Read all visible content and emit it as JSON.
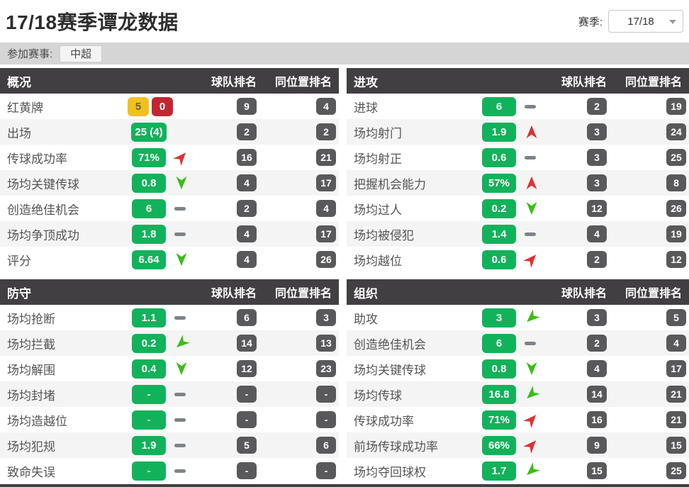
{
  "header": {
    "title": "17/18赛季谭龙数据",
    "season_label": "赛季:",
    "season_value": "17/18",
    "competition_label": "参加赛事:",
    "competition_value": "中超"
  },
  "columns": {
    "team_rank": "球队排名",
    "position_rank": "同位置排名"
  },
  "colors": {
    "badge_green": "#12b25b",
    "card_yellow": "#f2c01e",
    "card_red": "#c22731",
    "rank_badge_gray": "#59595b",
    "panel_header_dark": "#413f41",
    "trend_up_red": "#d93434",
    "trend_down_green": "#3bbd17",
    "trend_flat_gray": "#7c8388"
  },
  "panels": [
    {
      "title": "概况",
      "rows": [
        {
          "label": "红黄牌",
          "cards": {
            "yellow": "5",
            "red": "0"
          },
          "trend": "none",
          "team_rank": "9",
          "position_rank": "4"
        },
        {
          "label": "出场",
          "value": "25 (4)",
          "trend": "none",
          "team_rank": "2",
          "position_rank": "2"
        },
        {
          "label": "传球成功率",
          "value": "71%",
          "trend": "up-right",
          "team_rank": "16",
          "position_rank": "21"
        },
        {
          "label": "场均关键传球",
          "value": "0.8",
          "trend": "down",
          "team_rank": "4",
          "position_rank": "17"
        },
        {
          "label": "创造绝佳机会",
          "value": "6",
          "trend": "flat",
          "team_rank": "2",
          "position_rank": "4"
        },
        {
          "label": "场均争顶成功",
          "value": "1.8",
          "trend": "flat",
          "team_rank": "4",
          "position_rank": "17"
        },
        {
          "label": "评分",
          "value": "6.64",
          "trend": "down",
          "team_rank": "4",
          "position_rank": "26"
        }
      ]
    },
    {
      "title": "进攻",
      "rows": [
        {
          "label": "进球",
          "value": "6",
          "trend": "flat",
          "team_rank": "2",
          "position_rank": "19"
        },
        {
          "label": "场均射门",
          "value": "1.9",
          "trend": "up",
          "team_rank": "3",
          "position_rank": "24"
        },
        {
          "label": "场均射正",
          "value": "0.6",
          "trend": "flat",
          "team_rank": "3",
          "position_rank": "25"
        },
        {
          "label": "把握机会能力",
          "value": "57%",
          "trend": "up",
          "team_rank": "3",
          "position_rank": "8"
        },
        {
          "label": "场均过人",
          "value": "0.2",
          "trend": "down",
          "team_rank": "12",
          "position_rank": "26"
        },
        {
          "label": "场均被侵犯",
          "value": "1.4",
          "trend": "flat",
          "team_rank": "4",
          "position_rank": "19"
        },
        {
          "label": "场均越位",
          "value": "0.6",
          "trend": "up-right",
          "team_rank": "2",
          "position_rank": "12"
        }
      ]
    },
    {
      "title": "防守",
      "rows": [
        {
          "label": "场均抢断",
          "value": "1.1",
          "trend": "flat",
          "team_rank": "6",
          "position_rank": "3"
        },
        {
          "label": "场均拦截",
          "value": "0.2",
          "trend": "down-left",
          "team_rank": "14",
          "position_rank": "13"
        },
        {
          "label": "场均解围",
          "value": "0.4",
          "trend": "down",
          "team_rank": "12",
          "position_rank": "23"
        },
        {
          "label": "场均封堵",
          "value": "-",
          "trend": "flat",
          "team_rank": "-",
          "position_rank": "-"
        },
        {
          "label": "场均造越位",
          "value": "-",
          "trend": "flat",
          "team_rank": "-",
          "position_rank": "-"
        },
        {
          "label": "场均犯规",
          "value": "1.9",
          "trend": "flat",
          "team_rank": "5",
          "position_rank": "6"
        },
        {
          "label": "致命失误",
          "value": "-",
          "trend": "flat",
          "team_rank": "-",
          "position_rank": "-"
        }
      ]
    },
    {
      "title": "组织",
      "rows": [
        {
          "label": "助攻",
          "value": "3",
          "trend": "down-left",
          "team_rank": "3",
          "position_rank": "5"
        },
        {
          "label": "创造绝佳机会",
          "value": "6",
          "trend": "flat",
          "team_rank": "2",
          "position_rank": "4"
        },
        {
          "label": "场均关键传球",
          "value": "0.8",
          "trend": "down",
          "team_rank": "4",
          "position_rank": "17"
        },
        {
          "label": "场均传球",
          "value": "16.8",
          "trend": "down-left",
          "team_rank": "14",
          "position_rank": "21"
        },
        {
          "label": "传球成功率",
          "value": "71%",
          "trend": "up-right",
          "team_rank": "16",
          "position_rank": "21"
        },
        {
          "label": "前场传球成功率",
          "value": "66%",
          "trend": "up-right",
          "team_rank": "9",
          "position_rank": "15"
        },
        {
          "label": "场均夺回球权",
          "value": "1.7",
          "trend": "down-left",
          "team_rank": "15",
          "position_rank": "25"
        }
      ]
    }
  ]
}
